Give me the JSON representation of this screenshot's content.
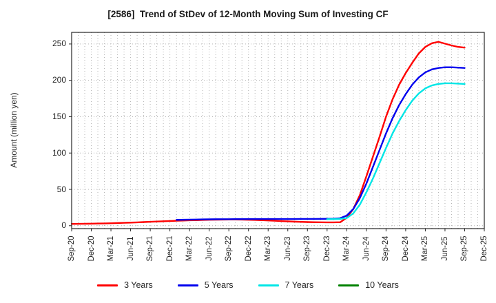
{
  "chart_data": {
    "type": "line",
    "title": "[2586]  Trend of StDev of 12-Month Moving Sum of Investing CF",
    "ylabel": "Amount (million yen)",
    "x_unit": "month",
    "x_start": "Sep-20",
    "x_axis_end": "Dec-25",
    "x_data_end": "Sep-25",
    "months_on_axis": 64,
    "xtick_labels": [
      "Sep-20",
      "Dec-20",
      "Mar-21",
      "Jun-21",
      "Sep-21",
      "Dec-21",
      "Mar-22",
      "Jun-22",
      "Sep-22",
      "Dec-22",
      "Mar-23",
      "Jun-23",
      "Sep-23",
      "Dec-23",
      "Mar-24",
      "Jun-24",
      "Sep-24",
      "Dec-24",
      "Mar-25",
      "Jun-25",
      "Sep-25",
      "Dec-25"
    ],
    "xtick_step_months": 3,
    "yticks": [
      0,
      50,
      100,
      150,
      200,
      250
    ],
    "ylim": [
      -4,
      266
    ],
    "grid": "dotted gray, vertical every month, horizontal every 50",
    "legend_position": "bottom",
    "frame_color": "#262626",
    "grid_color": "#b3b3b3",
    "series": [
      {
        "name": "3 Years",
        "color": "#ff0000",
        "values": [
          2.5,
          2.6,
          2.7,
          2.8,
          3.0,
          3.2,
          3.4,
          3.7,
          4.0,
          4.3,
          4.6,
          5.0,
          5.4,
          5.8,
          6.1,
          6.5,
          6.8,
          7.1,
          7.4,
          7.6,
          7.9,
          8.1,
          8.3,
          8.4,
          8.5,
          8.5,
          8.4,
          8.2,
          7.9,
          7.6,
          7.2,
          6.8,
          6.4,
          6.0,
          5.6,
          5.3,
          5.0,
          4.8,
          4.7,
          4.6,
          4.6,
          4.8,
          11,
          23,
          42,
          68,
          95,
          122,
          150,
          174,
          194,
          210,
          224,
          237,
          246,
          251,
          253,
          250.5,
          248,
          246,
          245
        ]
      },
      {
        "name": "5 Years",
        "color": "#0000ee",
        "values": [
          null,
          null,
          null,
          null,
          null,
          null,
          null,
          null,
          null,
          null,
          null,
          null,
          null,
          null,
          null,
          null,
          8.0,
          8.2,
          8.4,
          8.5,
          8.7,
          8.8,
          8.9,
          9.0,
          9.0,
          9.1,
          9.1,
          9.2,
          9.2,
          9.2,
          9.2,
          9.2,
          9.2,
          9.2,
          9.2,
          9.3,
          9.3,
          9.3,
          9.4,
          9.5,
          9.7,
          10.3,
          14,
          23,
          38,
          58,
          81,
          104,
          127,
          148,
          166,
          181,
          194,
          204,
          211,
          215,
          217,
          218,
          218,
          217.5,
          217
        ]
      },
      {
        "name": "7 Years",
        "color": "#00e6e6",
        "values": [
          null,
          null,
          null,
          null,
          null,
          null,
          null,
          null,
          null,
          null,
          null,
          null,
          null,
          null,
          null,
          null,
          null,
          null,
          null,
          null,
          null,
          null,
          null,
          null,
          null,
          null,
          null,
          null,
          null,
          null,
          null,
          null,
          null,
          null,
          null,
          null,
          null,
          null,
          null,
          9.0,
          9.1,
          9.4,
          10.5,
          17,
          29,
          46,
          65,
          86,
          107,
          127,
          144,
          159,
          172,
          182,
          189,
          193,
          195,
          196,
          196,
          195.5,
          195
        ]
      },
      {
        "name": "10 Years",
        "color": "#008000",
        "values": []
      }
    ]
  }
}
